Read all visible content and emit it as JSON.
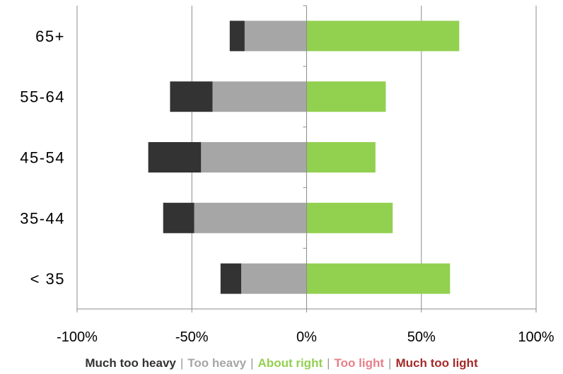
{
  "chart_data": {
    "type": "bar",
    "orientation": "horizontal",
    "stacked": "diverging",
    "categories": [
      "65+",
      "55-64",
      "45-54",
      "35-44",
      "< 35"
    ],
    "series": [
      {
        "name": "Much too heavy",
        "color": "#333333",
        "values": [
          -6.5,
          -18.5,
          -23,
          -13.5,
          -9
        ]
      },
      {
        "name": "Too heavy",
        "color": "#a6a6a6",
        "values": [
          -27,
          -41,
          -46,
          -49,
          -28.5
        ]
      },
      {
        "name": "About right",
        "color": "#92d050",
        "values": [
          66.5,
          34.5,
          30,
          37.5,
          62.5
        ]
      },
      {
        "name": "Too light",
        "color": "#e6808a",
        "values": [
          0,
          0,
          0,
          0,
          0
        ]
      },
      {
        "name": "Much too light",
        "color": "#a52a2a",
        "values": [
          0,
          0,
          0,
          0,
          0
        ]
      }
    ],
    "xlim": [
      -100,
      100
    ],
    "xticks": [
      -100,
      -50,
      0,
      50,
      100
    ],
    "xtick_labels": [
      "-100%",
      "-50%",
      "0%",
      "50%",
      "100%"
    ],
    "legend_position": "bottom",
    "grid": "vertical"
  },
  "legend": {
    "items": [
      {
        "label": "Much too heavy",
        "color": "#333333"
      },
      {
        "label": "Too heavy",
        "color": "#a6a6a6"
      },
      {
        "label": "About right",
        "color": "#92d050"
      },
      {
        "label": "Too light",
        "color": "#e6808a"
      },
      {
        "label": "Much too light",
        "color": "#a52a2a"
      }
    ],
    "separator": "|"
  }
}
